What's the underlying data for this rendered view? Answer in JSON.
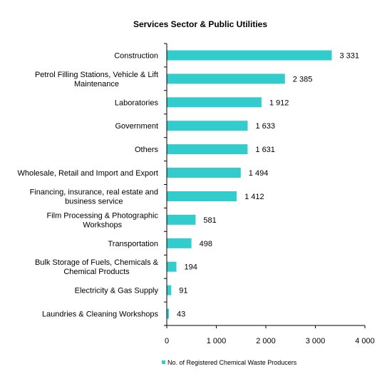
{
  "chart_data": {
    "type": "bar",
    "orientation": "horizontal",
    "title": "Services Sector & Public Utilities",
    "categories": [
      [
        "Construction"
      ],
      [
        "Petrol Filling Stations, Vehicle & Lift",
        "Maintenance"
      ],
      [
        "Laboratories"
      ],
      [
        "Government"
      ],
      [
        "Others"
      ],
      [
        "Wholesale, Retail and Import and Export"
      ],
      [
        "Financing, insurance, real estate and",
        "business service"
      ],
      [
        "Film Processing & Photographic",
        "Workshops"
      ],
      [
        "Transportation"
      ],
      [
        "Bulk Storage of Fuels, Chemicals &",
        "Chemical Products"
      ],
      [
        "Electricity & Gas Supply"
      ],
      [
        "Laundries & Cleaning Workshops"
      ]
    ],
    "series": [
      {
        "name": "No. of Registered Chemical Waste Producers",
        "values": [
          3331,
          2385,
          1912,
          1633,
          1631,
          1494,
          1412,
          581,
          498,
          194,
          91,
          43
        ],
        "value_labels": [
          "3 331",
          "2 385",
          "1 912",
          "1 633",
          "1 631",
          "1 494",
          "1 412",
          "581",
          "498",
          "194",
          "91",
          "43"
        ],
        "color": "#33CCCC"
      }
    ],
    "xlim": [
      0,
      4000
    ],
    "xticks": [
      0,
      1000,
      2000,
      3000,
      4000
    ],
    "xtick_labels": [
      "0",
      "1 000",
      "2 000",
      "3 000",
      "4 000"
    ],
    "xlabel": "",
    "ylabel": "",
    "grid": false,
    "legend_position": "bottom"
  }
}
